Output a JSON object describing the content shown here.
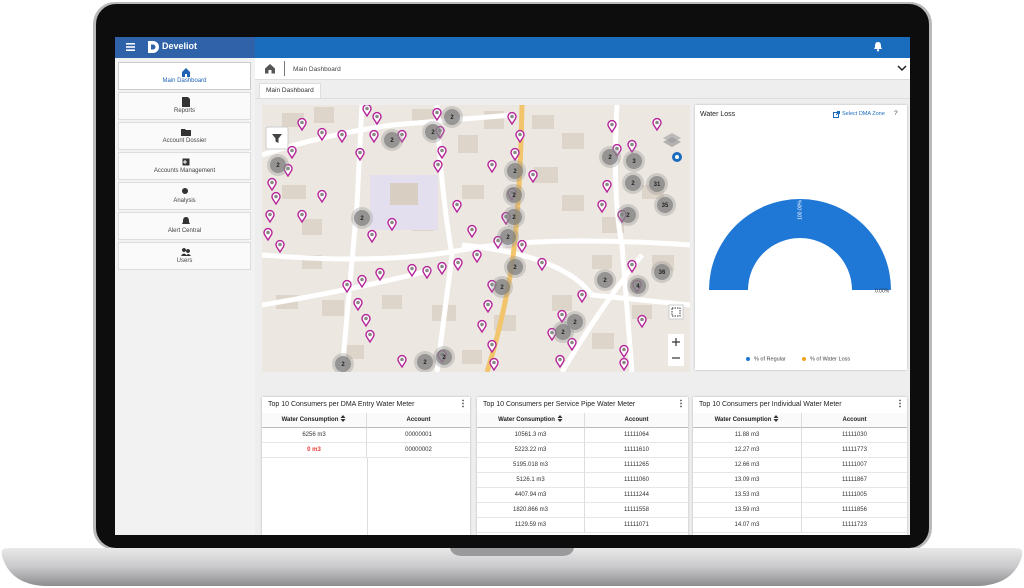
{
  "header": {
    "brand": "Develiot"
  },
  "sidebar": {
    "items": [
      "Main Dashboard",
      "Reports",
      "Account Dossier",
      "Accounts Management",
      "Analysis",
      "Alert Central",
      "Users"
    ]
  },
  "breadcrumb": "Main Dashboard",
  "tab": "Main Dashboard",
  "map": {
    "clusters": [
      2,
      2,
      2,
      2,
      2,
      3,
      31,
      2,
      35,
      2,
      2,
      2,
      2,
      2,
      2,
      36,
      2,
      4,
      2,
      2,
      2,
      2,
      2,
      2,
      2
    ]
  },
  "water_loss": {
    "title": "Water Loss",
    "zone_link": "Select DMA Zone",
    "help": "?",
    "regular_label": "100.00%",
    "loss_label": "0.00%",
    "legend": [
      "% of Regular",
      "% of Water Loss"
    ]
  },
  "tables": [
    {
      "title": "Top 10 Consumers per DMA Entry Water Meter",
      "columns": [
        "Water Consumption",
        "Account"
      ],
      "rows": [
        [
          "6256 m3",
          "00000001"
        ],
        [
          "0 m3",
          "00000002"
        ]
      ]
    },
    {
      "title": "Top 10 Consumers per Service Pipe Water Meter",
      "columns": [
        "Water Consumption",
        "Account"
      ],
      "rows": [
        [
          "10561.3 m3",
          "11111064"
        ],
        [
          "5223.22 m3",
          "11111610"
        ],
        [
          "5195.018 m3",
          "11111265"
        ],
        [
          "5126.1 m3",
          "11111060"
        ],
        [
          "4407.94 m3",
          "11111244"
        ],
        [
          "1820.866 m3",
          "11111558"
        ],
        [
          "1129.59 m3",
          "11111071"
        ]
      ]
    },
    {
      "title": "Top 10 Consumers per Individual Water Meter",
      "columns": [
        "Water Consumption",
        "Account"
      ],
      "rows": [
        [
          "11.88 m3",
          "11111030"
        ],
        [
          "12.27 m3",
          "11111773"
        ],
        [
          "12.66 m3",
          "11111007"
        ],
        [
          "13.09 m3",
          "11111867"
        ],
        [
          "13.53 m3",
          "11111005"
        ],
        [
          "13.59 m3",
          "11111856"
        ],
        [
          "14.07 m3",
          "11111723"
        ]
      ]
    }
  ]
}
